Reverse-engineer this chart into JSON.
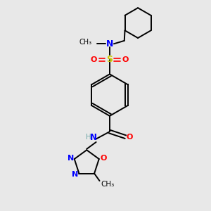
{
  "bg_color": "#e8e8e8",
  "bond_color": "#000000",
  "N_color": "#0000ff",
  "O_color": "#ff0000",
  "S_color": "#cccc00",
  "H_color": "#6fa8a8",
  "figsize": [
    3.0,
    3.0
  ],
  "dpi": 100,
  "xlim": [
    0,
    10
  ],
  "ylim": [
    0,
    10
  ]
}
